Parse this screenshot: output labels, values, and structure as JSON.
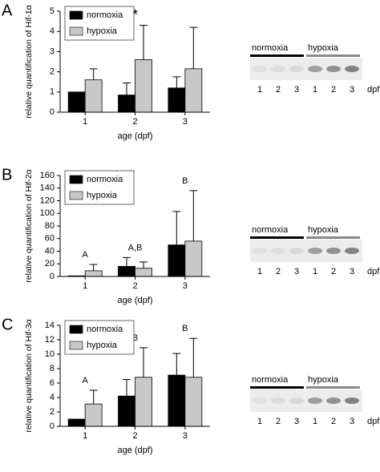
{
  "chart_data": [
    {
      "type": "bar",
      "panel": "A",
      "ylabel": "relative quantification of Hif-1α",
      "xlabel": "age (dpf)",
      "categories": [
        "1",
        "2",
        "3"
      ],
      "series": [
        {
          "name": "normoxia",
          "color": "#000000",
          "values": [
            1.0,
            0.85,
            1.2
          ],
          "errors": [
            null,
            0.6,
            0.55
          ]
        },
        {
          "name": "hypoxia",
          "color": "#c8c8c8",
          "values": [
            1.6,
            2.6,
            2.15
          ],
          "errors": [
            0.55,
            1.7,
            2.05
          ]
        }
      ],
      "ylim": [
        0,
        5
      ],
      "yticks": [
        0,
        1,
        2,
        3,
        4,
        5
      ],
      "annotations": [
        null,
        "*",
        null
      ],
      "blot": {
        "groups": [
          "normoxia",
          "hypoxia"
        ],
        "lanes": [
          "1",
          "2",
          "3",
          "1",
          "2",
          "3"
        ],
        "unit": "dpf"
      }
    },
    {
      "type": "bar",
      "panel": "B",
      "ylabel": "relative quantification of Hif-2α",
      "xlabel": "age (dpf)",
      "categories": [
        "1",
        "2",
        "3"
      ],
      "series": [
        {
          "name": "normoxia",
          "color": "#000000",
          "values": [
            1,
            16,
            50
          ],
          "errors": [
            null,
            14,
            53
          ]
        },
        {
          "name": "hypoxia",
          "color": "#c8c8c8",
          "values": [
            9,
            13,
            56
          ],
          "errors": [
            10,
            10,
            80
          ]
        }
      ],
      "ylim": [
        0,
        160
      ],
      "yticks": [
        0,
        20,
        40,
        60,
        80,
        100,
        120,
        140,
        160
      ],
      "annotations": [
        "A",
        "A,B",
        "B"
      ],
      "blot": {
        "groups": [
          "normoxia",
          "hypoxia"
        ],
        "lanes": [
          "1",
          "2",
          "3",
          "1",
          "2",
          "3"
        ],
        "unit": "dpf"
      }
    },
    {
      "type": "bar",
      "panel": "C",
      "ylabel": "relative quantification of Hif-3α",
      "xlabel": "age (dpf)",
      "categories": [
        "1",
        "2",
        "3"
      ],
      "series": [
        {
          "name": "normoxia",
          "color": "#000000",
          "values": [
            1,
            4.2,
            7.1
          ],
          "errors": [
            null,
            2.3,
            3.0
          ]
        },
        {
          "name": "hypoxia",
          "color": "#c8c8c8",
          "values": [
            3.1,
            6.8,
            6.8
          ],
          "errors": [
            1.9,
            4.1,
            5.4
          ]
        }
      ],
      "ylim": [
        0,
        14
      ],
      "yticks": [
        0,
        2,
        4,
        6,
        8,
        10,
        12,
        14
      ],
      "annotations": [
        "A",
        "B",
        "B"
      ],
      "blot": {
        "groups": [
          "normoxia",
          "hypoxia"
        ],
        "lanes": [
          "1",
          "2",
          "3",
          "1",
          "2",
          "3"
        ],
        "unit": "dpf"
      }
    }
  ]
}
